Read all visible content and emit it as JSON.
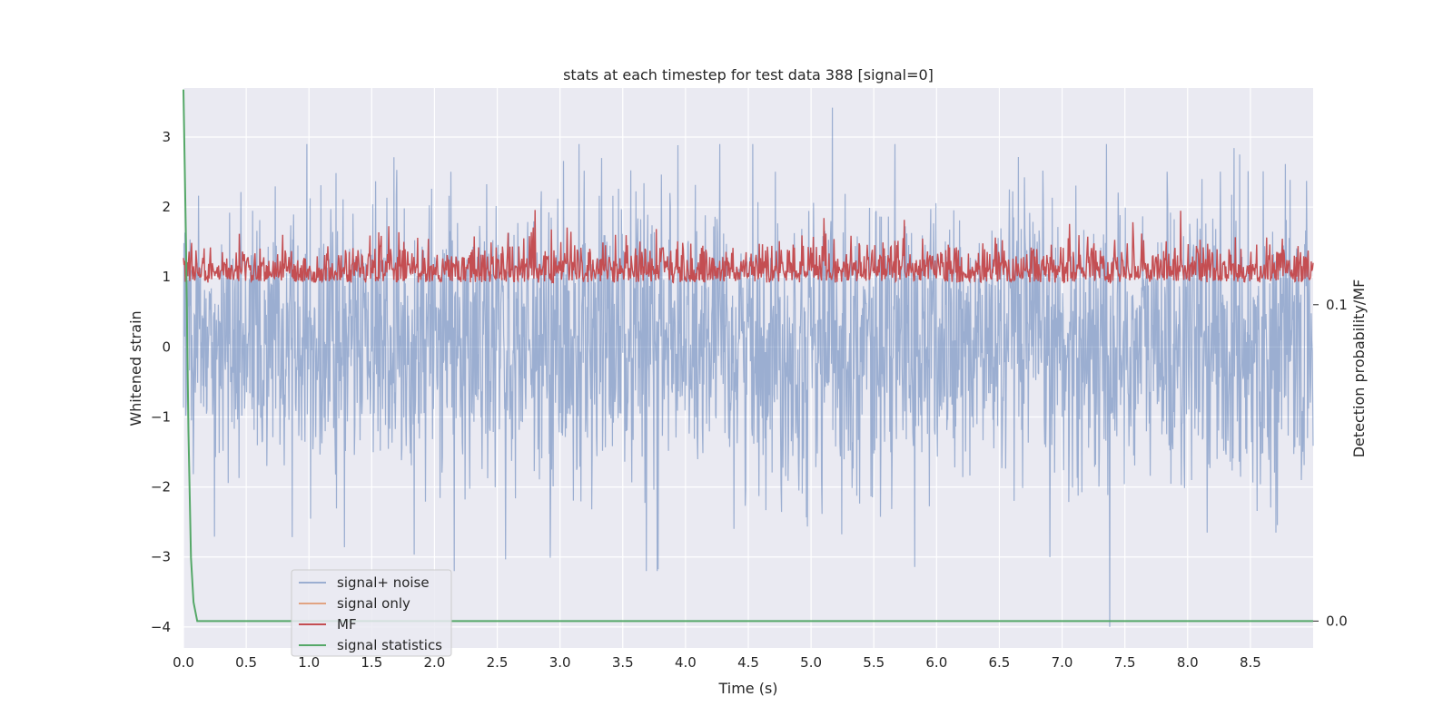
{
  "chart_data": {
    "type": "line",
    "title": "stats at each timestep for test data 388 [signal=0]",
    "xlabel": "Time (s)",
    "ylabel": "Whitened strain",
    "y2label": "Detection probability/MF",
    "xlim": [
      0.0,
      9.0
    ],
    "ylim": [
      -4.3,
      3.7
    ],
    "y2lim": [
      -0.0085,
      0.1685
    ],
    "x_ticks": [
      "0.0",
      "0.5",
      "1.0",
      "1.5",
      "2.0",
      "2.5",
      "3.0",
      "3.5",
      "4.0",
      "4.5",
      "5.0",
      "5.5",
      "6.0",
      "6.5",
      "7.0",
      "7.5",
      "8.0",
      "8.5"
    ],
    "y_ticks": [
      "3",
      "2",
      "1",
      "0",
      "−1",
      "−2",
      "−3",
      "−4"
    ],
    "y2_ticks": [
      "0.1",
      "0.0"
    ],
    "grid": true,
    "legend_position": "lower-left",
    "colors": {
      "background": "#EAEAF2",
      "grid": "#FFFFFF",
      "signal_noise": "#4C72B0",
      "signal_only": "#DD8452",
      "mf": "#C44E52",
      "statistics": "#55A868"
    },
    "series": [
      {
        "name": "signal+ noise",
        "axis": "left",
        "description_of_values": "noisy whitened strain, roughly Gaussian, mostly between -2.5 and 2.5",
        "values_summary": {
          "max": 3.42,
          "min": -4.0,
          "max_at_x": 5.17,
          "min_at_x": 7.38
        }
      },
      {
        "name": "signal only",
        "axis": "left",
        "values_summary": {
          "constant": 0
        }
      },
      {
        "name": "MF",
        "axis": "right",
        "values_summary": {
          "min": 0.1,
          "max": 0.135
        }
      },
      {
        "name": "signal statistics",
        "axis": "right",
        "x": [
          0.0,
          0.02,
          0.04,
          0.06,
          0.08,
          0.11,
          9.0
        ],
        "values": [
          0.168,
          0.12,
          0.06,
          0.02,
          0.006,
          0.0,
          0.0
        ]
      }
    ]
  }
}
